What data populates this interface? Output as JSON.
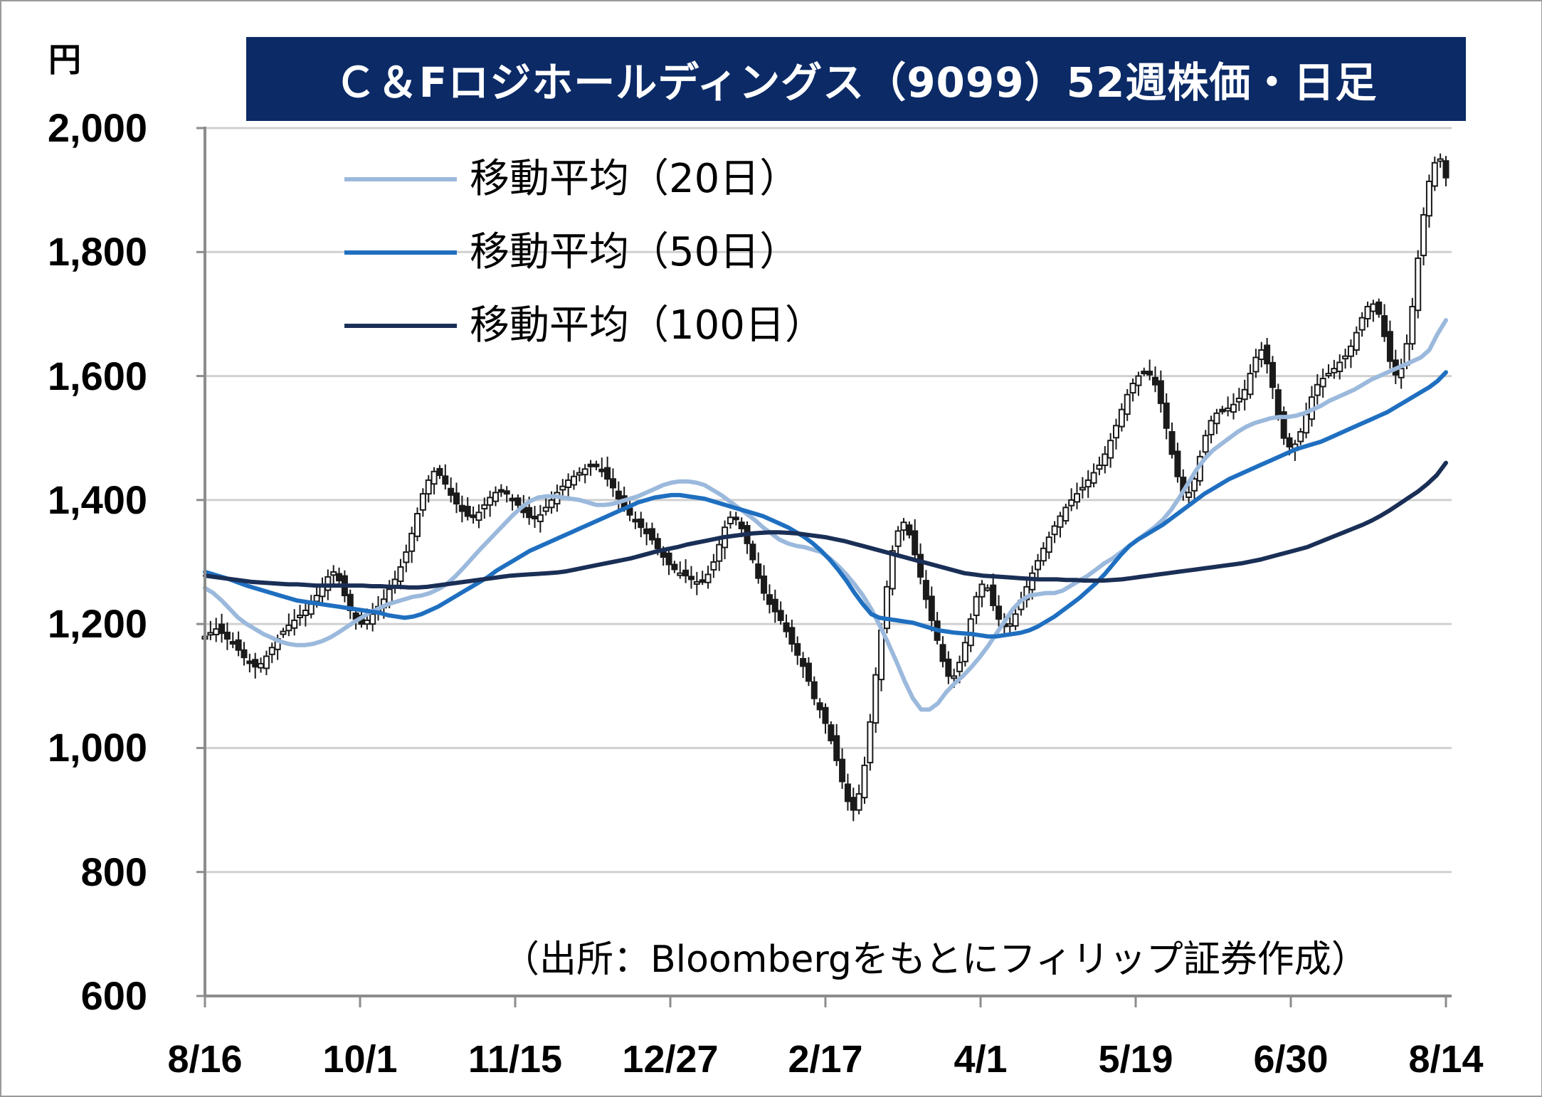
{
  "chart_data": {
    "type": "candlestick",
    "title": "Ｃ＆Fロジホールディングス（9099）52週株価・日足",
    "unit_label": "円",
    "source": "（出所：Bloombergをもとにフィリップ証券作成）",
    "ylim": [
      600,
      2000
    ],
    "yticks": [
      "600",
      "800",
      "1,000",
      "1,200",
      "1,400",
      "1,600",
      "1,800",
      "2,000"
    ],
    "ytick_values": [
      600,
      800,
      1000,
      1200,
      1400,
      1600,
      1800,
      2000
    ],
    "xticks": [
      "8/16",
      "10/1",
      "11/15",
      "12/27",
      "2/17",
      "4/1",
      "5/19",
      "6/30",
      "8/14"
    ],
    "grid": true,
    "legend_position": "top-left",
    "colors": {
      "ma20": "#9bb9dc",
      "ma50": "#1f6fc0",
      "ma100": "#1a2f56",
      "candle_up": "#ffffff",
      "candle_down": "#1a1a1a",
      "grid": "#d0d0d0",
      "title_bg": "#0b2a66"
    },
    "series": [
      {
        "name": "移動平均（20日）",
        "values": [
          1258,
          1250,
          1238,
          1224,
          1210,
          1200,
          1192,
          1184,
          1178,
          1172,
          1168,
          1166,
          1166,
          1168,
          1172,
          1178,
          1186,
          1195,
          1204,
          1212,
          1220,
          1226,
          1232,
          1236,
          1240,
          1244,
          1246,
          1250,
          1256,
          1264,
          1276,
          1290,
          1305,
          1320,
          1334,
          1348,
          1362,
          1376,
          1388,
          1398,
          1404,
          1406,
          1406,
          1404,
          1402,
          1400,
          1396,
          1392,
          1392,
          1394,
          1398,
          1402,
          1406,
          1412,
          1418,
          1424,
          1428,
          1430,
          1430,
          1428,
          1424,
          1416,
          1408,
          1398,
          1388,
          1378,
          1368,
          1356,
          1346,
          1336,
          1330,
          1326,
          1324,
          1320,
          1316,
          1306,
          1294,
          1280,
          1264,
          1246,
          1224,
          1198,
          1170,
          1140,
          1108,
          1080,
          1062,
          1062,
          1072,
          1090,
          1104,
          1116,
          1130,
          1146,
          1164,
          1184,
          1204,
          1224,
          1238,
          1246,
          1248,
          1250,
          1250,
          1254,
          1262,
          1270,
          1278,
          1288,
          1298,
          1306,
          1316,
          1326,
          1336,
          1346,
          1356,
          1368,
          1384,
          1404,
          1426,
          1448,
          1466,
          1480,
          1490,
          1500,
          1510,
          1518,
          1524,
          1528,
          1532,
          1534,
          1534,
          1536,
          1540,
          1546,
          1552,
          1560,
          1566,
          1572,
          1578,
          1586,
          1594,
          1600,
          1606,
          1612,
          1618,
          1624,
          1630,
          1642,
          1668,
          1690
        ]
      },
      {
        "name": "移動平均（50日）",
        "values": [
          1284,
          1280,
          1276,
          1272,
          1267,
          1262,
          1258,
          1254,
          1250,
          1246,
          1242,
          1238,
          1236,
          1234,
          1232,
          1230,
          1228,
          1226,
          1224,
          1222,
          1220,
          1218,
          1214,
          1212,
          1210,
          1212,
          1216,
          1222,
          1228,
          1236,
          1244,
          1252,
          1260,
          1268,
          1276,
          1286,
          1294,
          1302,
          1310,
          1318,
          1324,
          1330,
          1336,
          1342,
          1348,
          1354,
          1360,
          1366,
          1372,
          1378,
          1384,
          1390,
          1396,
          1400,
          1404,
          1406,
          1408,
          1408,
          1406,
          1404,
          1402,
          1398,
          1394,
          1390,
          1386,
          1382,
          1378,
          1374,
          1368,
          1362,
          1356,
          1348,
          1340,
          1330,
          1318,
          1304,
          1288,
          1270,
          1250,
          1232,
          1216,
          1210,
          1208,
          1206,
          1204,
          1202,
          1198,
          1194,
          1190,
          1188,
          1186,
          1185,
          1184,
          1182,
          1180,
          1180,
          1182,
          1184,
          1186,
          1190,
          1196,
          1204,
          1212,
          1222,
          1232,
          1242,
          1254,
          1266,
          1280,
          1296,
          1312,
          1326,
          1336,
          1344,
          1352,
          1360,
          1370,
          1380,
          1390,
          1400,
          1410,
          1418,
          1426,
          1434,
          1440,
          1446,
          1452,
          1458,
          1464,
          1470,
          1476,
          1482,
          1486,
          1490,
          1494,
          1500,
          1506,
          1512,
          1518,
          1524,
          1530,
          1536,
          1542,
          1550,
          1558,
          1566,
          1574,
          1582,
          1592,
          1606
        ]
      },
      {
        "name": "移動平均（100日）",
        "values": [
          1278,
          1276,
          1274,
          1272,
          1270,
          1268,
          1267,
          1266,
          1265,
          1264,
          1264,
          1263,
          1262,
          1262,
          1262,
          1262,
          1262,
          1262,
          1261,
          1261,
          1260,
          1260,
          1259,
          1259,
          1260,
          1262,
          1264,
          1266,
          1268,
          1270,
          1272,
          1274,
          1276,
          1278,
          1279,
          1280,
          1281,
          1282,
          1283,
          1285,
          1288,
          1291,
          1294,
          1297,
          1300,
          1303,
          1306,
          1310,
          1314,
          1318,
          1321,
          1324,
          1328,
          1331,
          1334,
          1337,
          1340,
          1342,
          1344,
          1346,
          1347,
          1348,
          1348,
          1347,
          1346,
          1344,
          1342,
          1340,
          1337,
          1334,
          1330,
          1326,
          1322,
          1318,
          1314,
          1310,
          1306,
          1302,
          1298,
          1294,
          1290,
          1286,
          1282,
          1280,
          1278,
          1277,
          1276,
          1275,
          1274,
          1273,
          1272,
          1272,
          1272,
          1271,
          1271,
          1270,
          1270,
          1270,
          1271,
          1272,
          1274,
          1276,
          1278,
          1280,
          1282,
          1284,
          1286,
          1288,
          1290,
          1292,
          1294,
          1296,
          1298,
          1301,
          1304,
          1308,
          1312,
          1316,
          1320,
          1324,
          1330,
          1336,
          1342,
          1348,
          1354,
          1360,
          1367,
          1375,
          1384,
          1394,
          1404,
          1414,
          1426,
          1440,
          1460
        ]
      }
    ],
    "candles_close": [
      1180,
      1186,
      1192,
      1185,
      1176,
      1168,
      1158,
      1146,
      1138,
      1131,
      1136,
      1148,
      1162,
      1176,
      1188,
      1198,
      1206,
      1214,
      1222,
      1232,
      1246,
      1262,
      1276,
      1284,
      1270,
      1246,
      1222,
      1208,
      1200,
      1206,
      1216,
      1228,
      1240,
      1256,
      1272,
      1292,
      1316,
      1346,
      1378,
      1410,
      1432,
      1446,
      1440,
      1426,
      1408,
      1394,
      1382,
      1374,
      1372,
      1380,
      1392,
      1404,
      1412,
      1416,
      1410,
      1400,
      1392,
      1380,
      1372,
      1370,
      1376,
      1388,
      1400,
      1412,
      1422,
      1432,
      1438,
      1444,
      1450,
      1456,
      1454,
      1446,
      1434,
      1420,
      1402,
      1388,
      1376,
      1366,
      1356,
      1346,
      1336,
      1322,
      1308,
      1296,
      1288,
      1282,
      1278,
      1272,
      1268,
      1270,
      1280,
      1300,
      1328,
      1356,
      1372,
      1370,
      1354,
      1330,
      1304,
      1274,
      1250,
      1232,
      1220,
      1206,
      1188,
      1168,
      1150,
      1132,
      1108,
      1080,
      1062,
      1040,
      1012,
      980,
      946,
      914,
      900,
      926,
      972,
      1042,
      1118,
      1190,
      1260,
      1318,
      1350,
      1364,
      1344,
      1312,
      1276,
      1240,
      1206,
      1174,
      1140,
      1116,
      1116,
      1138,
      1170,
      1208,
      1244,
      1264,
      1258,
      1230,
      1208,
      1196,
      1200,
      1216,
      1238,
      1260,
      1282,
      1302,
      1322,
      1340,
      1358,
      1374,
      1388,
      1400,
      1410,
      1420,
      1432,
      1444,
      1456,
      1474,
      1496,
      1520,
      1546,
      1570,
      1588,
      1600,
      1606,
      1602,
      1586,
      1556,
      1516,
      1474,
      1438,
      1412,
      1412,
      1434,
      1470,
      1504,
      1528,
      1540,
      1544,
      1548,
      1554,
      1564,
      1578,
      1604,
      1630,
      1642,
      1620,
      1582,
      1536,
      1500,
      1486,
      1490,
      1510,
      1538,
      1566,
      1586,
      1596,
      1604,
      1612,
      1622,
      1632,
      1648,
      1670,
      1694,
      1712,
      1716,
      1700,
      1664,
      1624,
      1602,
      1612,
      1652,
      1712,
      1790,
      1860,
      1914,
      1944,
      1950,
      1920
    ]
  },
  "series_names": [
    "移動平均（20日）",
    "移動平均（50日）",
    "移動平均（100日）"
  ]
}
